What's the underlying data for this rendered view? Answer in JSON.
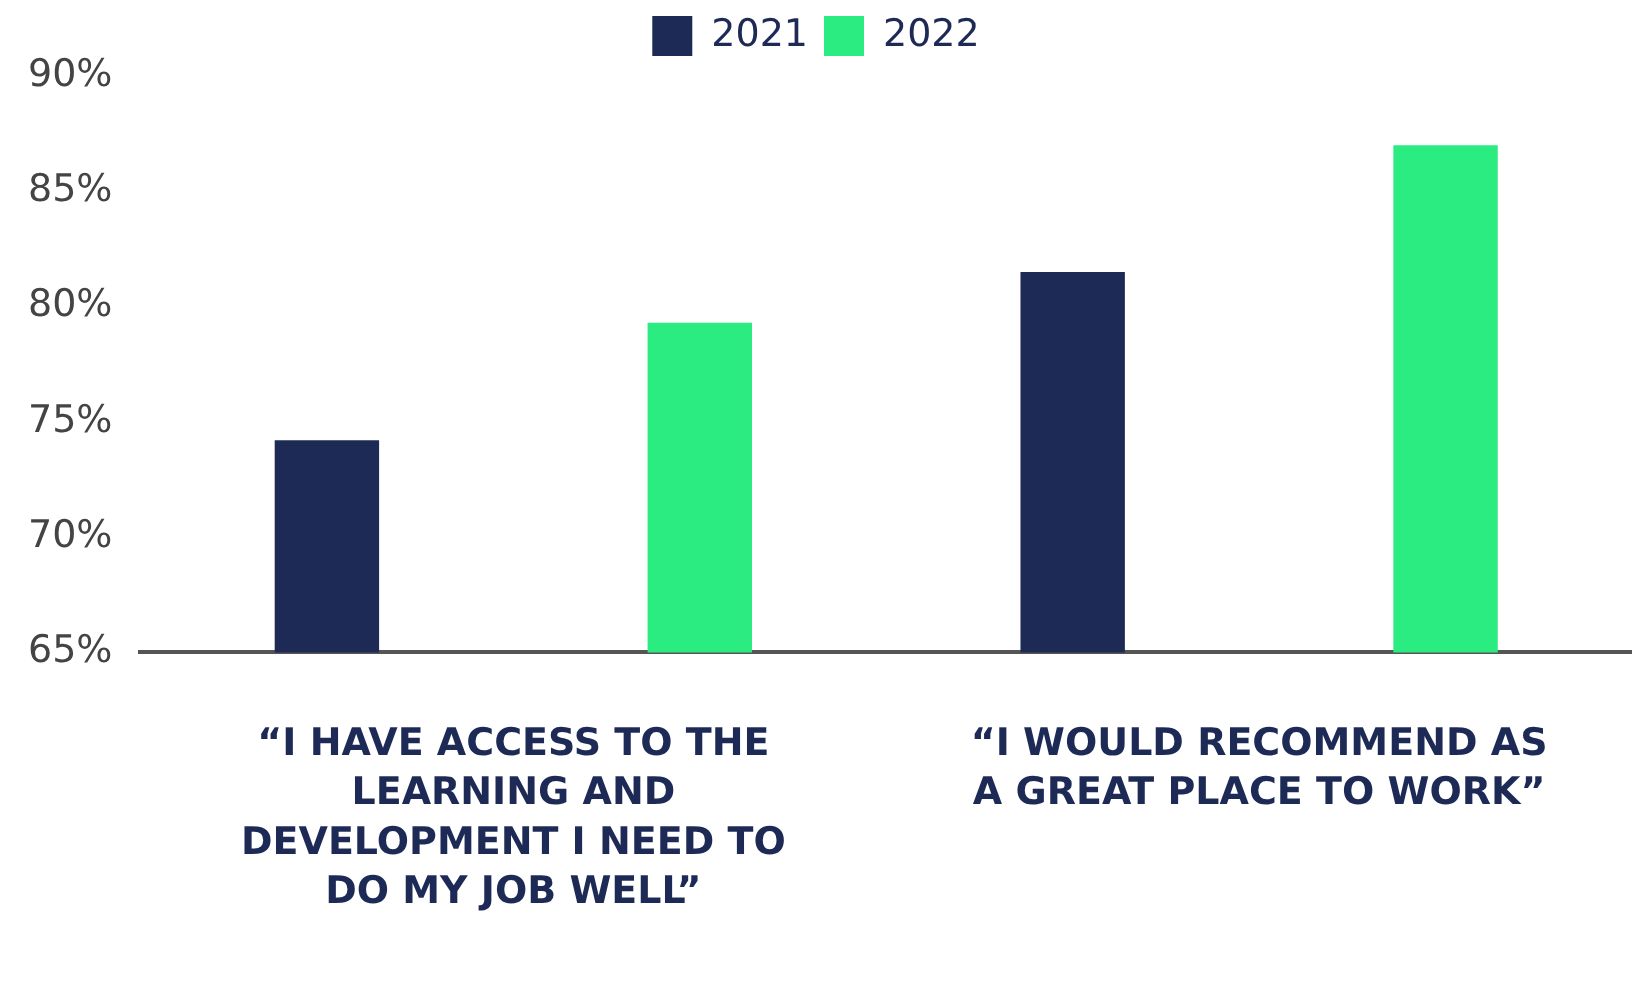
{
  "chart_data": {
    "type": "bar",
    "categories": [
      "“I HAVE ACCESS TO THE LEARNING AND DEVELOPMENT I NEED TO DO MY JOB WELL”",
      "“I WOULD RECOMMEND AS A GREAT PLACE TO WORK”"
    ],
    "series": [
      {
        "name": "2021",
        "color": "#1e2a56",
        "values": [
          74.2,
          81.5
        ]
      },
      {
        "name": "2022",
        "color": "#2aec80",
        "values": [
          79.3,
          87.0
        ]
      }
    ],
    "ylim": [
      65,
      90
    ],
    "yticks": [
      {
        "value": 65,
        "label": "65%"
      },
      {
        "value": 70,
        "label": "70%"
      },
      {
        "value": 75,
        "label": "75%"
      },
      {
        "value": 80,
        "label": "80%"
      },
      {
        "value": 85,
        "label": "85%"
      },
      {
        "value": 90,
        "label": "90%"
      }
    ],
    "grid": false,
    "legend": "top"
  }
}
